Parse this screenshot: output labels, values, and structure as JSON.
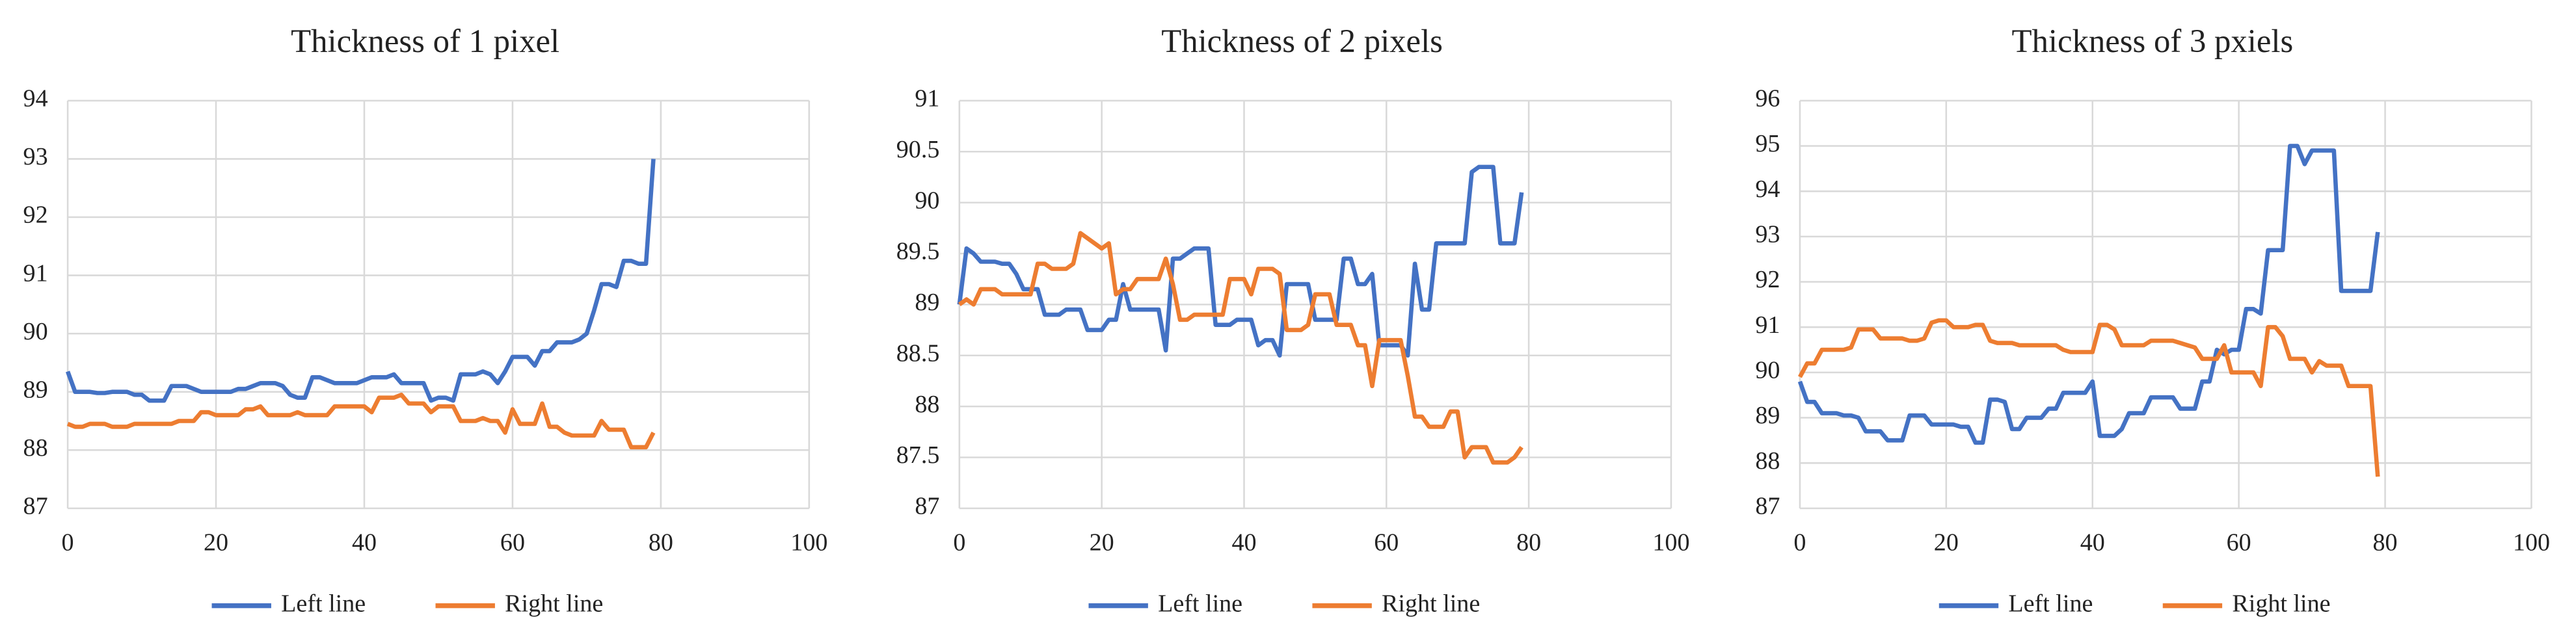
{
  "chart_data": [
    {
      "type": "line",
      "title": "Thickness of 1 pixel",
      "x": [
        0,
        1,
        2,
        3,
        4,
        5,
        6,
        7,
        8,
        9,
        10,
        11,
        12,
        13,
        14,
        15,
        16,
        17,
        18,
        19,
        20,
        21,
        22,
        23,
        24,
        25,
        26,
        27,
        28,
        29,
        30,
        31,
        32,
        33,
        34,
        35,
        36,
        37,
        38,
        39,
        40,
        41,
        42,
        43,
        44,
        45,
        46,
        47,
        48,
        49,
        50,
        51,
        52,
        53,
        54,
        55,
        56,
        57,
        58,
        59,
        60,
        61,
        62,
        63,
        64,
        65,
        66,
        67,
        68,
        69,
        70,
        71,
        72,
        73,
        74,
        75,
        76,
        77,
        78,
        79
      ],
      "series": [
        {
          "name": "Left line",
          "color": "#4472c4",
          "values": [
            89.35,
            89.0,
            89.0,
            89.0,
            88.98,
            88.98,
            89.0,
            89.0,
            89.0,
            88.95,
            88.95,
            88.85,
            88.85,
            88.85,
            89.1,
            89.1,
            89.1,
            89.05,
            89.0,
            89.0,
            89.0,
            89.0,
            89.0,
            89.05,
            89.05,
            89.1,
            89.15,
            89.15,
            89.15,
            89.1,
            88.95,
            88.9,
            88.9,
            89.25,
            89.25,
            89.2,
            89.15,
            89.15,
            89.15,
            89.15,
            89.2,
            89.25,
            89.25,
            89.25,
            89.3,
            89.15,
            89.15,
            89.15,
            89.15,
            88.85,
            88.9,
            88.9,
            88.85,
            89.3,
            89.3,
            89.3,
            89.35,
            89.3,
            89.15,
            89.35,
            89.6,
            89.6,
            89.6,
            89.45,
            89.7,
            89.7,
            89.85,
            89.85,
            89.85,
            89.9,
            90.0,
            90.4,
            90.85,
            90.85,
            90.8,
            91.25,
            91.25,
            91.2,
            91.2,
            93.0
          ]
        },
        {
          "name": "Right line",
          "color": "#ed7d31",
          "values": [
            88.45,
            88.4,
            88.4,
            88.45,
            88.45,
            88.45,
            88.4,
            88.4,
            88.4,
            88.45,
            88.45,
            88.45,
            88.45,
            88.45,
            88.45,
            88.5,
            88.5,
            88.5,
            88.65,
            88.65,
            88.6,
            88.6,
            88.6,
            88.6,
            88.7,
            88.7,
            88.75,
            88.6,
            88.6,
            88.6,
            88.6,
            88.65,
            88.6,
            88.6,
            88.6,
            88.6,
            88.75,
            88.75,
            88.75,
            88.75,
            88.75,
            88.65,
            88.9,
            88.9,
            88.9,
            88.95,
            88.8,
            88.8,
            88.8,
            88.65,
            88.75,
            88.75,
            88.75,
            88.5,
            88.5,
            88.5,
            88.55,
            88.5,
            88.5,
            88.3,
            88.7,
            88.45,
            88.45,
            88.45,
            88.8,
            88.4,
            88.4,
            88.3,
            88.25,
            88.25,
            88.25,
            88.25,
            88.5,
            88.35,
            88.35,
            88.35,
            88.05,
            88.05,
            88.05,
            88.3
          ]
        }
      ],
      "xlim": [
        0,
        100
      ],
      "xticks": [
        0,
        20,
        40,
        60,
        80,
        100
      ],
      "ylim": [
        87,
        94
      ],
      "yticks": [
        87,
        88,
        89,
        90,
        91,
        92,
        93,
        94
      ],
      "grid": true,
      "legend": "bottom"
    },
    {
      "type": "line",
      "title": "Thickness of 2 pixels",
      "x": [
        0,
        1,
        2,
        3,
        4,
        5,
        6,
        7,
        8,
        9,
        10,
        11,
        12,
        13,
        14,
        15,
        16,
        17,
        18,
        19,
        20,
        21,
        22,
        23,
        24,
        25,
        26,
        27,
        28,
        29,
        30,
        31,
        32,
        33,
        34,
        35,
        36,
        37,
        38,
        39,
        40,
        41,
        42,
        43,
        44,
        45,
        46,
        47,
        48,
        49,
        50,
        51,
        52,
        53,
        54,
        55,
        56,
        57,
        58,
        59,
        60,
        61,
        62,
        63,
        64,
        65,
        66,
        67,
        68,
        69,
        70,
        71,
        72,
        73,
        74,
        75,
        76,
        77,
        78,
        79
      ],
      "series": [
        {
          "name": "Left line",
          "color": "#4472c4",
          "values": [
            89.0,
            89.55,
            89.5,
            89.42,
            89.42,
            89.42,
            89.4,
            89.4,
            89.3,
            89.15,
            89.15,
            89.15,
            88.9,
            88.9,
            88.9,
            88.95,
            88.95,
            88.95,
            88.75,
            88.75,
            88.75,
            88.85,
            88.85,
            89.2,
            88.95,
            88.95,
            88.95,
            88.95,
            88.95,
            88.55,
            89.45,
            89.45,
            89.5,
            89.55,
            89.55,
            89.55,
            88.8,
            88.8,
            88.8,
            88.85,
            88.85,
            88.85,
            88.6,
            88.65,
            88.65,
            88.5,
            89.2,
            89.2,
            89.2,
            89.2,
            88.85,
            88.85,
            88.85,
            88.85,
            89.45,
            89.45,
            89.2,
            89.2,
            89.3,
            88.6,
            88.6,
            88.6,
            88.6,
            88.5,
            89.4,
            88.95,
            88.95,
            89.6,
            89.6,
            89.6,
            89.6,
            89.6,
            90.3,
            90.35,
            90.35,
            90.35,
            89.6,
            89.6,
            89.6,
            90.1
          ]
        },
        {
          "name": "Right line",
          "color": "#ed7d31",
          "values": [
            89.0,
            89.05,
            89.0,
            89.15,
            89.15,
            89.15,
            89.1,
            89.1,
            89.1,
            89.1,
            89.1,
            89.4,
            89.4,
            89.35,
            89.35,
            89.35,
            89.4,
            89.7,
            89.65,
            89.6,
            89.55,
            89.6,
            89.1,
            89.15,
            89.15,
            89.25,
            89.25,
            89.25,
            89.25,
            89.45,
            89.2,
            88.85,
            88.85,
            88.9,
            88.9,
            88.9,
            88.9,
            88.9,
            89.25,
            89.25,
            89.25,
            89.1,
            89.35,
            89.35,
            89.35,
            89.3,
            88.75,
            88.75,
            88.75,
            88.8,
            89.1,
            89.1,
            89.1,
            88.8,
            88.8,
            88.8,
            88.6,
            88.6,
            88.2,
            88.65,
            88.65,
            88.65,
            88.65,
            88.3,
            87.9,
            87.9,
            87.8,
            87.8,
            87.8,
            87.95,
            87.95,
            87.5,
            87.6,
            87.6,
            87.6,
            87.45,
            87.45,
            87.45,
            87.5,
            87.6
          ]
        }
      ],
      "xlim": [
        0,
        100
      ],
      "xticks": [
        0,
        20,
        40,
        60,
        80,
        100
      ],
      "ylim": [
        87,
        91
      ],
      "yticks": [
        87,
        87.5,
        88,
        88.5,
        89,
        89.5,
        90,
        90.5,
        91
      ],
      "grid": true,
      "legend": "bottom"
    },
    {
      "type": "line",
      "title": "Thickness of 3 pxiels",
      "x": [
        0,
        1,
        2,
        3,
        4,
        5,
        6,
        7,
        8,
        9,
        10,
        11,
        12,
        13,
        14,
        15,
        16,
        17,
        18,
        19,
        20,
        21,
        22,
        23,
        24,
        25,
        26,
        27,
        28,
        29,
        30,
        31,
        32,
        33,
        34,
        35,
        36,
        37,
        38,
        39,
        40,
        41,
        42,
        43,
        44,
        45,
        46,
        47,
        48,
        49,
        50,
        51,
        52,
        53,
        54,
        55,
        56,
        57,
        58,
        59,
        60,
        61,
        62,
        63,
        64,
        65,
        66,
        67,
        68,
        69,
        70,
        71,
        72,
        73,
        74,
        75,
        76,
        77,
        78,
        79
      ],
      "series": [
        {
          "name": "Left line",
          "color": "#4472c4",
          "values": [
            89.8,
            89.35,
            89.35,
            89.1,
            89.1,
            89.1,
            89.05,
            89.05,
            89.0,
            88.7,
            88.7,
            88.7,
            88.5,
            88.5,
            88.5,
            89.05,
            89.05,
            89.05,
            88.85,
            88.85,
            88.85,
            88.85,
            88.8,
            88.8,
            88.45,
            88.45,
            89.4,
            89.4,
            89.35,
            88.75,
            88.75,
            89.0,
            89.0,
            89.0,
            89.2,
            89.2,
            89.55,
            89.55,
            89.55,
            89.55,
            89.8,
            88.6,
            88.6,
            88.6,
            88.75,
            89.1,
            89.1,
            89.1,
            89.45,
            89.45,
            89.45,
            89.45,
            89.2,
            89.2,
            89.2,
            89.8,
            89.8,
            90.5,
            90.4,
            90.5,
            90.5,
            91.4,
            91.4,
            91.3,
            92.7,
            92.7,
            92.7,
            95.0,
            95.0,
            94.6,
            94.9,
            94.9,
            94.9,
            94.9,
            91.8,
            91.8,
            91.8,
            91.8,
            91.8,
            93.1
          ]
        },
        {
          "name": "Right line",
          "color": "#ed7d31",
          "values": [
            89.9,
            90.2,
            90.2,
            90.5,
            90.5,
            90.5,
            90.5,
            90.55,
            90.95,
            90.95,
            90.95,
            90.75,
            90.75,
            90.75,
            90.75,
            90.7,
            90.7,
            90.75,
            91.1,
            91.15,
            91.15,
            91.0,
            91.0,
            91.0,
            91.05,
            91.05,
            90.7,
            90.65,
            90.65,
            90.65,
            90.6,
            90.6,
            90.6,
            90.6,
            90.6,
            90.6,
            90.5,
            90.45,
            90.45,
            90.45,
            90.45,
            91.05,
            91.05,
            90.95,
            90.6,
            90.6,
            90.6,
            90.6,
            90.7,
            90.7,
            90.7,
            90.7,
            90.65,
            90.6,
            90.55,
            90.3,
            90.3,
            90.3,
            90.6,
            90.0,
            90.0,
            90.0,
            90.0,
            89.7,
            91.0,
            91.0,
            90.8,
            90.3,
            90.3,
            90.3,
            90.0,
            90.25,
            90.15,
            90.15,
            90.15,
            89.7,
            89.7,
            89.7,
            89.7,
            87.7
          ]
        }
      ],
      "xlim": [
        0,
        100
      ],
      "xticks": [
        0,
        20,
        40,
        60,
        80,
        100
      ],
      "ylim": [
        87,
        96
      ],
      "yticks": [
        87,
        88,
        89,
        90,
        91,
        92,
        93,
        94,
        95,
        96
      ],
      "grid": true,
      "legend": "bottom"
    }
  ]
}
